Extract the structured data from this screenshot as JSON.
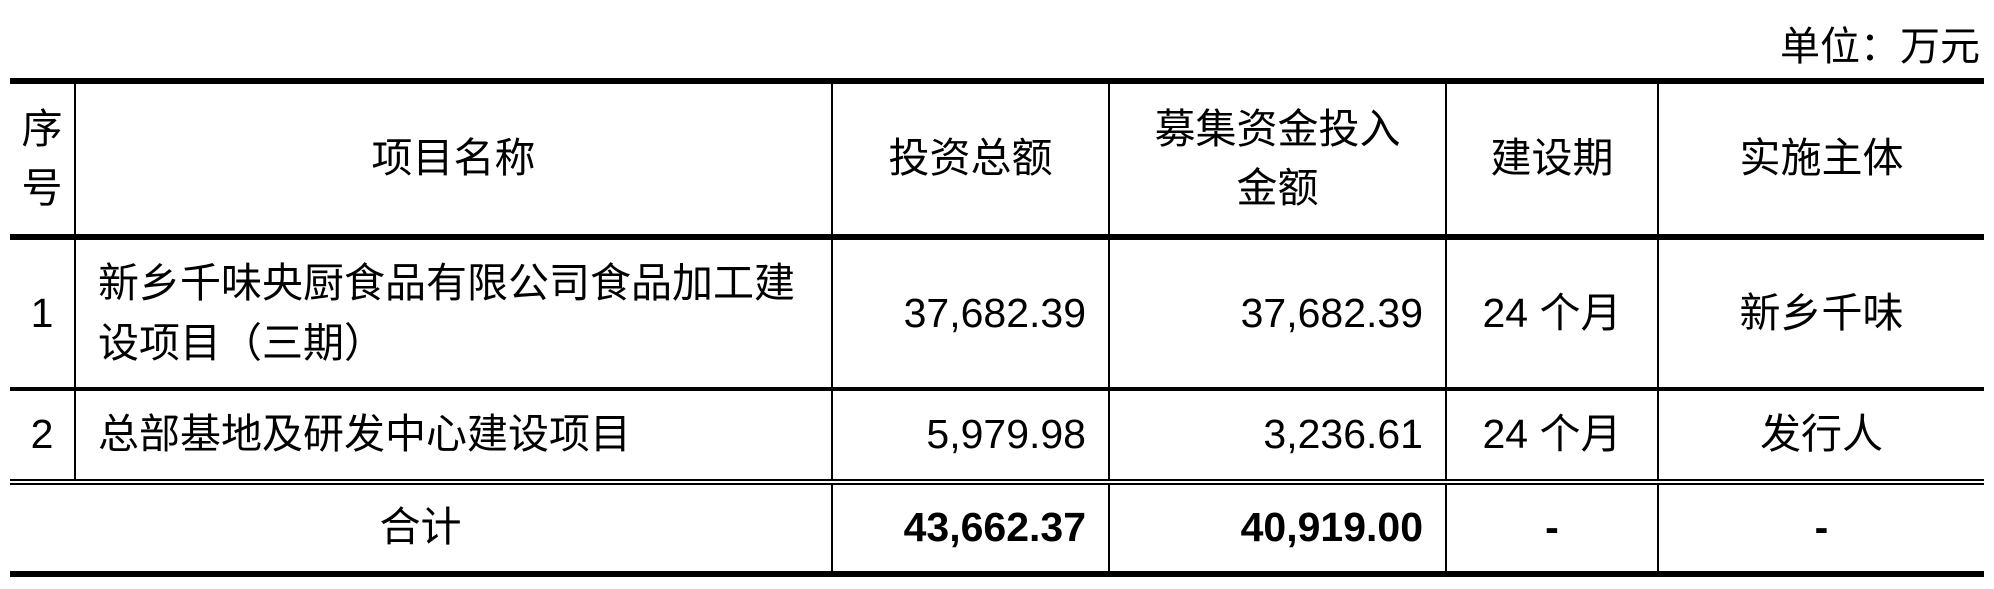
{
  "unit_label": "单位：万元",
  "headers": {
    "seq": "序号",
    "name": "项目名称",
    "total_investment": "投资总额",
    "raised_funds": "募集资金投入金额",
    "period": "建设期",
    "entity": "实施主体"
  },
  "rows": [
    {
      "seq": "1",
      "name": "新乡千味央厨食品有限公司食品加工建设项目（三期）",
      "total_investment": "37,682.39",
      "raised_funds": "37,682.39",
      "period": "24 个月",
      "entity": "新乡千味"
    },
    {
      "seq": "2",
      "name": "总部基地及研发中心建设项目",
      "total_investment": "5,979.98",
      "raised_funds": "3,236.61",
      "period": "24 个月",
      "entity": "发行人"
    }
  ],
  "total": {
    "label": "合计",
    "total_investment": "43,662.37",
    "raised_funds": "40,919.00",
    "period": "-",
    "entity": "-"
  }
}
